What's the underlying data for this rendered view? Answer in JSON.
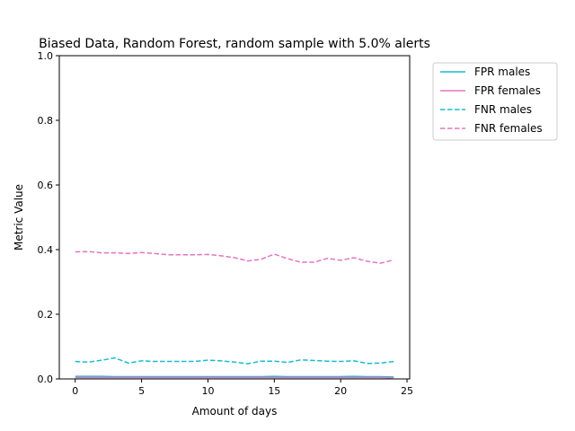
{
  "chart_data": {
    "type": "line",
    "title": "Biased Data, Random Forest, random sample with 5.0% alerts",
    "xlabel": "Amount of days",
    "ylabel": "Metric Value",
    "xlim": [
      -1.2,
      25.2
    ],
    "ylim": [
      0,
      1.0
    ],
    "xticks": [
      0,
      5,
      10,
      15,
      20,
      25
    ],
    "yticks": [
      0.0,
      0.2,
      0.4,
      0.6,
      0.8,
      1.0
    ],
    "ytick_labels": [
      "0.0",
      "0.2",
      "0.4",
      "0.6",
      "0.8",
      "1.0"
    ],
    "grid": false,
    "legend_position": "outside-top-right",
    "x": [
      0,
      1,
      2,
      3,
      4,
      5,
      6,
      7,
      8,
      9,
      10,
      11,
      12,
      13,
      14,
      15,
      16,
      17,
      18,
      19,
      20,
      21,
      22,
      23,
      24
    ],
    "series": [
      {
        "name": "FPR males",
        "color": "#17becf",
        "style": "solid",
        "values": [
          0.008,
          0.008,
          0.008,
          0.007,
          0.007,
          0.007,
          0.007,
          0.007,
          0.007,
          0.007,
          0.007,
          0.007,
          0.007,
          0.007,
          0.007,
          0.008,
          0.007,
          0.007,
          0.007,
          0.007,
          0.007,
          0.008,
          0.007,
          0.007,
          0.006
        ]
      },
      {
        "name": "FPR females",
        "color": "#e377c2",
        "style": "solid",
        "values": [
          0.004,
          0.004,
          0.004,
          0.004,
          0.004,
          0.004,
          0.004,
          0.004,
          0.004,
          0.004,
          0.004,
          0.004,
          0.004,
          0.004,
          0.004,
          0.004,
          0.004,
          0.004,
          0.004,
          0.004,
          0.004,
          0.004,
          0.004,
          0.004,
          0.003
        ]
      },
      {
        "name": "FNR males",
        "color": "#17becf",
        "style": "dashed",
        "values": [
          0.054,
          0.052,
          0.058,
          0.065,
          0.049,
          0.056,
          0.054,
          0.054,
          0.054,
          0.054,
          0.058,
          0.056,
          0.052,
          0.047,
          0.055,
          0.055,
          0.051,
          0.059,
          0.057,
          0.055,
          0.054,
          0.056,
          0.048,
          0.049,
          0.054
        ]
      },
      {
        "name": "FNR females",
        "color": "#e377c2",
        "style": "dashed",
        "values": [
          0.393,
          0.394,
          0.39,
          0.39,
          0.388,
          0.391,
          0.388,
          0.384,
          0.384,
          0.384,
          0.385,
          0.381,
          0.375,
          0.365,
          0.37,
          0.386,
          0.372,
          0.361,
          0.361,
          0.373,
          0.367,
          0.375,
          0.364,
          0.358,
          0.368
        ]
      }
    ]
  }
}
